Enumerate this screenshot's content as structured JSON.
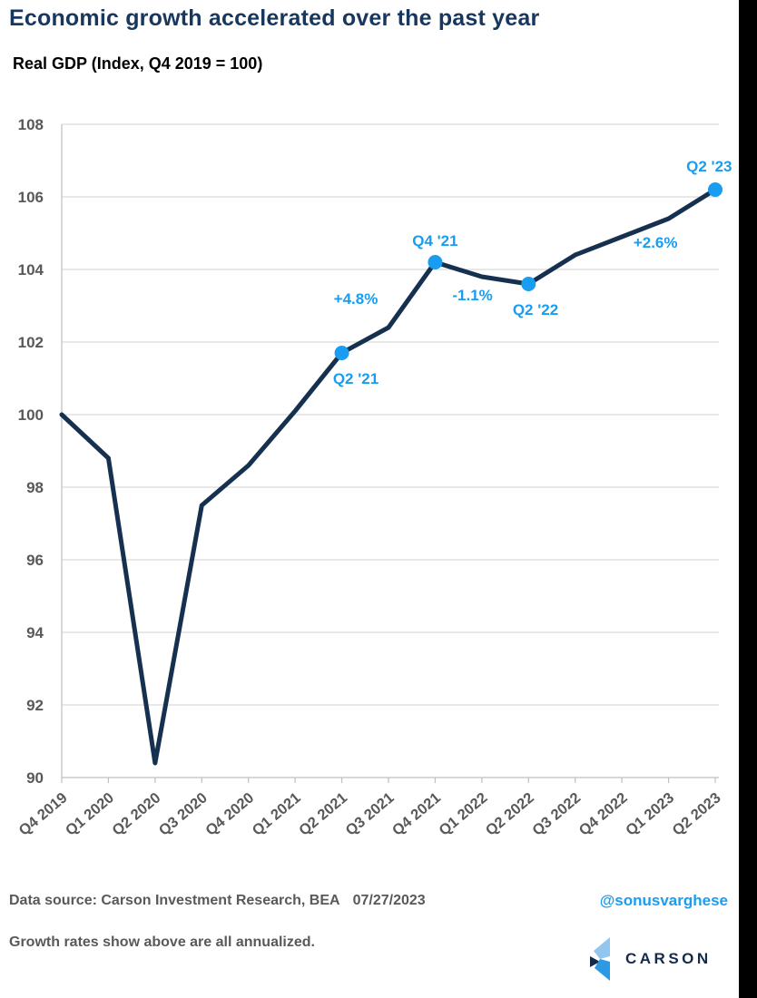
{
  "page": {
    "title": "Economic growth accelerated over the past year",
    "subtitle": "Real GDP (Index, Q4 2019 = 100)"
  },
  "footer": {
    "source": "Data source: Carson Investment Research, BEA",
    "date": "07/27/2023",
    "handle": "@sonusvarghese",
    "note": "Growth rates show above are all annualized.",
    "brand": "CARSON"
  },
  "colors": {
    "title_navy": "#17375E",
    "line_navy": "#16304F",
    "accent_blue": "#199DF0",
    "text_gray": "#595959",
    "gridline": "#D9D9D9",
    "axis": "#BFBFBF",
    "logo_light": "#92C6EF",
    "logo_mid": "#2C99E5",
    "logo_navy": "#152A4A"
  },
  "chart_data": {
    "type": "line",
    "title": "Economic growth accelerated over the past year",
    "subtitle": "Real GDP (Index, Q4 2019 = 100)",
    "xlabel": "",
    "ylabel": "",
    "grid": true,
    "legend": "none",
    "ylim": [
      90,
      108
    ],
    "ytick_step": 2,
    "categories": [
      "Q4 2019",
      "Q1 2020",
      "Q2 2020",
      "Q3 2020",
      "Q4 2020",
      "Q1 2021",
      "Q2 2021",
      "Q3 2021",
      "Q4 2021",
      "Q1 2022",
      "Q2 2022",
      "Q3 2022",
      "Q4 2022",
      "Q1 2023",
      "Q2 2023"
    ],
    "values": [
      100.0,
      98.8,
      90.4,
      97.5,
      98.6,
      100.1,
      101.7,
      102.4,
      104.2,
      103.8,
      103.6,
      104.4,
      104.9,
      105.4,
      106.2
    ],
    "markers": [
      6,
      8,
      10,
      14
    ],
    "annotations": [
      {
        "text": "Q2 '21",
        "x": 6.3,
        "y": 101.0
      },
      {
        "text": "+4.8%",
        "x": 6.3,
        "y": 103.2
      },
      {
        "text": "Q4 '21",
        "x": 8.0,
        "y": 104.8
      },
      {
        "text": "-1.1%",
        "x": 8.8,
        "y": 103.3
      },
      {
        "text": "Q2 '22",
        "x": 10.15,
        "y": 102.9
      },
      {
        "text": "+2.6%",
        "x": 12.72,
        "y": 104.75
      },
      {
        "text": "Q2 '23",
        "x": 13.87,
        "y": 106.85
      }
    ]
  }
}
